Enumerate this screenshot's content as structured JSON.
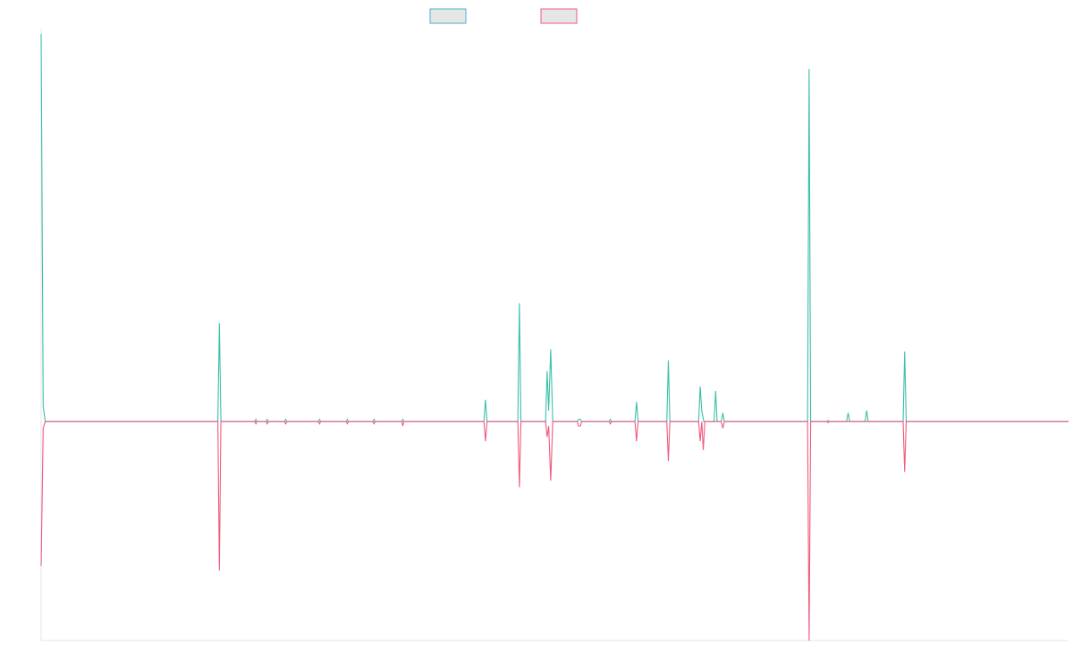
{
  "chart_data": {
    "type": "line",
    "title": "",
    "xlabel": "",
    "ylabel": "",
    "grid": false,
    "legend_placement": "top-center",
    "ylim": [
      -1.0,
      1.77
    ],
    "xlim": [
      0,
      1000
    ],
    "baseline": 0,
    "series": [
      {
        "color": "#3cbfab",
        "fill": "#e6e6e6",
        "legend_border": "#4ab3c9",
        "points": [
          [
            0,
            1.77
          ],
          [
            2,
            0.07
          ],
          [
            4,
            0
          ],
          [
            172,
            0
          ],
          [
            173.5,
            0.45
          ],
          [
            175,
            0
          ],
          [
            208,
            0
          ],
          [
            209,
            0.01
          ],
          [
            210,
            0
          ],
          [
            219,
            0
          ],
          [
            220,
            0.01
          ],
          [
            221,
            0
          ],
          [
            237,
            0
          ],
          [
            238,
            0.01
          ],
          [
            239,
            0
          ],
          [
            270,
            0
          ],
          [
            271,
            0.01
          ],
          [
            272,
            0
          ],
          [
            297,
            0
          ],
          [
            298,
            0.01
          ],
          [
            299,
            0
          ],
          [
            323,
            0
          ],
          [
            324,
            0.01
          ],
          [
            325,
            0
          ],
          [
            351,
            0
          ],
          [
            352,
            0.01
          ],
          [
            353,
            0
          ],
          [
            431,
            0
          ],
          [
            432.5,
            0.1
          ],
          [
            434,
            0
          ],
          [
            464,
            0
          ],
          [
            465.5,
            0.54
          ],
          [
            467,
            0
          ],
          [
            491,
            0
          ],
          [
            492.5,
            0.23
          ],
          [
            494,
            0.05
          ],
          [
            496,
            0.33
          ],
          [
            498,
            0
          ],
          [
            522,
            0
          ],
          [
            523,
            0.01
          ],
          [
            525,
            0.01
          ],
          [
            526,
            0
          ],
          [
            553,
            0
          ],
          [
            554,
            0.01
          ],
          [
            555,
            0
          ],
          [
            578,
            0
          ],
          [
            579.5,
            0.09
          ],
          [
            581,
            0
          ],
          [
            609,
            0
          ],
          [
            610.5,
            0.28
          ],
          [
            612,
            0
          ],
          [
            640,
            0
          ],
          [
            641.5,
            0.16
          ],
          [
            643,
            0.05
          ],
          [
            645,
            0
          ],
          [
            655,
            0
          ],
          [
            656.5,
            0.14
          ],
          [
            658,
            0
          ],
          [
            662,
            0
          ],
          [
            663.5,
            0.04
          ],
          [
            665,
            0
          ],
          [
            746,
            0
          ],
          [
            747.5,
            1.61
          ],
          [
            749,
            0
          ],
          [
            765,
            0
          ],
          [
            766,
            0.005
          ],
          [
            767,
            0
          ],
          [
            784,
            0
          ],
          [
            785.5,
            0.04
          ],
          [
            787,
            0
          ],
          [
            802,
            0
          ],
          [
            803.5,
            0.05
          ],
          [
            805,
            0
          ],
          [
            839,
            0
          ],
          [
            840.5,
            0.32
          ],
          [
            842,
            0
          ],
          [
            1000,
            0
          ]
        ]
      },
      {
        "color": "#ef5b7f",
        "fill": "#e6e6e6",
        "legend_border": "#ef5b7f",
        "points": [
          [
            0,
            -0.66
          ],
          [
            2,
            -0.03
          ],
          [
            4,
            0
          ],
          [
            172,
            0
          ],
          [
            173.5,
            -0.68
          ],
          [
            175,
            0
          ],
          [
            208,
            0
          ],
          [
            209,
            -0.01
          ],
          [
            210,
            0
          ],
          [
            219,
            0
          ],
          [
            220,
            -0.01
          ],
          [
            221,
            0
          ],
          [
            237,
            0
          ],
          [
            238,
            -0.01
          ],
          [
            239,
            0
          ],
          [
            270,
            0
          ],
          [
            271,
            -0.01
          ],
          [
            272,
            0
          ],
          [
            297,
            0
          ],
          [
            298,
            -0.01
          ],
          [
            299,
            0
          ],
          [
            323,
            0
          ],
          [
            324,
            -0.01
          ],
          [
            325,
            0
          ],
          [
            351,
            0
          ],
          [
            352,
            -0.02
          ],
          [
            353,
            0
          ],
          [
            431,
            0
          ],
          [
            432.5,
            -0.09
          ],
          [
            434,
            0
          ],
          [
            464,
            0
          ],
          [
            465.5,
            -0.3
          ],
          [
            467,
            0
          ],
          [
            491,
            0
          ],
          [
            492.5,
            -0.07
          ],
          [
            494,
            -0.02
          ],
          [
            496,
            -0.27
          ],
          [
            498,
            0
          ],
          [
            522,
            0
          ],
          [
            523,
            -0.02
          ],
          [
            525,
            -0.02
          ],
          [
            526,
            0
          ],
          [
            553,
            0
          ],
          [
            554,
            -0.01
          ],
          [
            555,
            0
          ],
          [
            578,
            0
          ],
          [
            579.5,
            -0.09
          ],
          [
            581,
            0
          ],
          [
            609,
            0
          ],
          [
            610.5,
            -0.18
          ],
          [
            612,
            0
          ],
          [
            640,
            0
          ],
          [
            641.5,
            -0.09
          ],
          [
            643,
            0
          ],
          [
            644.5,
            -0.13
          ],
          [
            646,
            0
          ],
          [
            662,
            0
          ],
          [
            663.5,
            -0.03
          ],
          [
            665,
            0
          ],
          [
            746,
            0
          ],
          [
            747.5,
            -1.0
          ],
          [
            749,
            0
          ],
          [
            765,
            0
          ],
          [
            766,
            -0.005
          ],
          [
            767,
            0
          ],
          [
            839,
            0
          ],
          [
            840.5,
            -0.23
          ],
          [
            842,
            0
          ],
          [
            1000,
            0
          ]
        ]
      }
    ]
  }
}
